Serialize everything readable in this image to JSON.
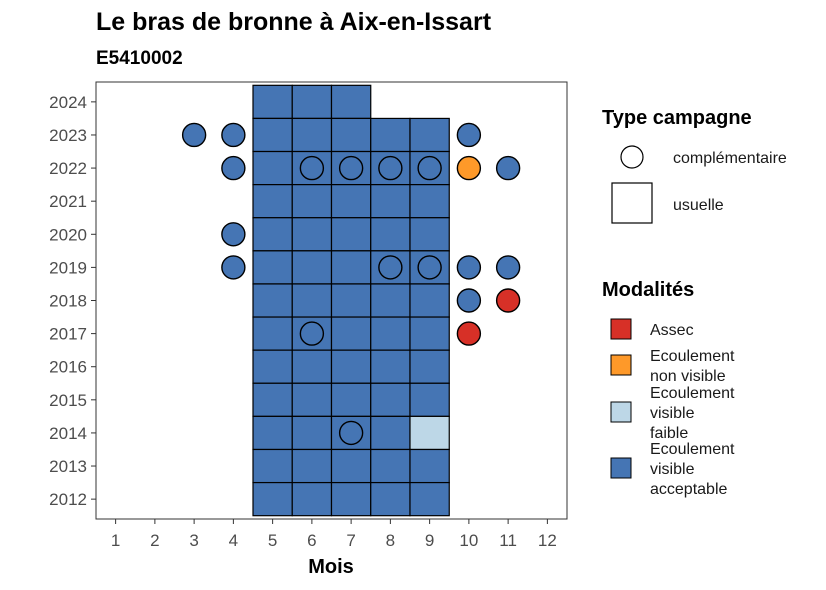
{
  "chart_data": {
    "type": "heatmap",
    "title": "Le bras de bronne à Aix-en-Issart",
    "subtitle": "E5410002",
    "xlabel": "Mois",
    "ylabel": "",
    "x_ticks": [
      "1",
      "2",
      "3",
      "4",
      "5",
      "6",
      "7",
      "8",
      "9",
      "10",
      "11",
      "12"
    ],
    "y_ticks": [
      "2012",
      "2013",
      "2014",
      "2015",
      "2016",
      "2017",
      "2018",
      "2019",
      "2020",
      "2021",
      "2022",
      "2023",
      "2024"
    ],
    "xlim": [
      0.5,
      12.5
    ],
    "ylim": [
      2011.4,
      2024.6
    ],
    "colors": {
      "Assec": "#d73027",
      "Ecoulement non visible": "#fe9929",
      "Ecoulement visible faible": "#bdd7e7",
      "Ecoulement visible acceptable": "#4575b4"
    },
    "usuelle": [
      {
        "year": 2024,
        "months": [
          5,
          6,
          7
        ],
        "modalite": "Ecoulement visible acceptable"
      },
      {
        "year": 2023,
        "months": [
          5,
          6,
          7,
          8,
          9
        ],
        "modalite": "Ecoulement visible acceptable"
      },
      {
        "year": 2022,
        "months": [
          5,
          6,
          7,
          8,
          9
        ],
        "modalite": "Ecoulement visible acceptable"
      },
      {
        "year": 2021,
        "months": [
          5,
          6,
          7,
          8,
          9
        ],
        "modalite": "Ecoulement visible acceptable"
      },
      {
        "year": 2020,
        "months": [
          5,
          6,
          7,
          8,
          9
        ],
        "modalite": "Ecoulement visible acceptable"
      },
      {
        "year": 2019,
        "months": [
          5,
          6,
          7,
          8,
          9
        ],
        "modalite": "Ecoulement visible acceptable"
      },
      {
        "year": 2018,
        "months": [
          5,
          6,
          7,
          8,
          9
        ],
        "modalite": "Ecoulement visible acceptable"
      },
      {
        "year": 2017,
        "months": [
          5,
          6,
          7,
          8,
          9
        ],
        "modalite": "Ecoulement visible acceptable"
      },
      {
        "year": 2016,
        "months": [
          5,
          6,
          7,
          8,
          9
        ],
        "modalite": "Ecoulement visible acceptable"
      },
      {
        "year": 2015,
        "months": [
          5,
          6,
          7,
          8,
          9
        ],
        "modalite": "Ecoulement visible acceptable"
      },
      {
        "year": 2014,
        "months": [
          5,
          6,
          7,
          8
        ],
        "modalite": "Ecoulement visible acceptable"
      },
      {
        "year": 2014,
        "months": [
          9
        ],
        "modalite": "Ecoulement visible faible"
      },
      {
        "year": 2013,
        "months": [
          5,
          6,
          7,
          8,
          9
        ],
        "modalite": "Ecoulement visible acceptable"
      },
      {
        "year": 2012,
        "months": [
          5,
          6,
          7,
          8,
          9
        ],
        "modalite": "Ecoulement visible acceptable"
      }
    ],
    "complementaire": [
      {
        "year": 2023,
        "month": 3,
        "modalite": "Ecoulement visible acceptable"
      },
      {
        "year": 2023,
        "month": 4,
        "modalite": "Ecoulement visible acceptable"
      },
      {
        "year": 2023,
        "month": 10,
        "modalite": "Ecoulement visible acceptable"
      },
      {
        "year": 2022,
        "month": 4,
        "modalite": "Ecoulement visible acceptable"
      },
      {
        "year": 2022,
        "month": 6,
        "modalite": "Ecoulement visible acceptable"
      },
      {
        "year": 2022,
        "month": 7,
        "modalite": "Ecoulement visible acceptable"
      },
      {
        "year": 2022,
        "month": 8,
        "modalite": "Ecoulement visible acceptable"
      },
      {
        "year": 2022,
        "month": 9,
        "modalite": "Ecoulement visible acceptable"
      },
      {
        "year": 2022,
        "month": 10,
        "modalite": "Ecoulement non visible"
      },
      {
        "year": 2022,
        "month": 11,
        "modalite": "Ecoulement visible acceptable"
      },
      {
        "year": 2020,
        "month": 4,
        "modalite": "Ecoulement visible acceptable"
      },
      {
        "year": 2019,
        "month": 4,
        "modalite": "Ecoulement visible acceptable"
      },
      {
        "year": 2019,
        "month": 8,
        "modalite": "Ecoulement visible acceptable"
      },
      {
        "year": 2019,
        "month": 9,
        "modalite": "Ecoulement visible acceptable"
      },
      {
        "year": 2019,
        "month": 10,
        "modalite": "Ecoulement visible acceptable"
      },
      {
        "year": 2019,
        "month": 11,
        "modalite": "Ecoulement visible acceptable"
      },
      {
        "year": 2018,
        "month": 10,
        "modalite": "Ecoulement visible acceptable"
      },
      {
        "year": 2018,
        "month": 11,
        "modalite": "Assec"
      },
      {
        "year": 2017,
        "month": 6,
        "modalite": "Ecoulement visible acceptable"
      },
      {
        "year": 2017,
        "month": 10,
        "modalite": "Assec"
      },
      {
        "year": 2014,
        "month": 7,
        "modalite": "Ecoulement visible acceptable"
      }
    ],
    "legend": {
      "type_title": "Type campagne",
      "type_entries": [
        "complémentaire",
        "usuelle"
      ],
      "modalites_title": "Modalités",
      "modalites_entries": [
        {
          "lines": [
            "Assec"
          ],
          "key": "Assec"
        },
        {
          "lines": [
            "Ecoulement",
            "non visible"
          ],
          "key": "Ecoulement non visible"
        },
        {
          "lines": [
            "Ecoulement",
            "visible",
            "faible"
          ],
          "key": "Ecoulement visible faible"
        },
        {
          "lines": [
            "Ecoulement",
            "visible",
            "acceptable"
          ],
          "key": "Ecoulement visible acceptable"
        }
      ],
      "position": "right"
    }
  }
}
